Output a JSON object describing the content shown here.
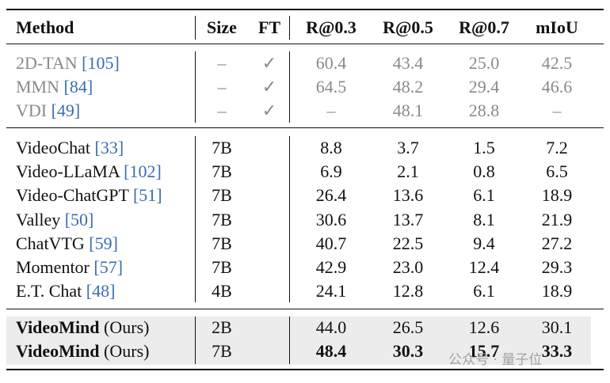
{
  "header": [
    "Method",
    "Size",
    "FT",
    "R@0.3",
    "R@0.5",
    "R@0.7",
    "mIoU"
  ],
  "groups": [
    [
      {
        "method": "2D-TAN",
        "ref": "[105]",
        "size": "–",
        "ft": "✓",
        "scores": [
          "60.4",
          "43.4",
          "25.0",
          "42.5"
        ]
      },
      {
        "method": "MMN",
        "ref": "[84]",
        "size": "–",
        "ft": "✓",
        "scores": [
          "64.5",
          "48.2",
          "29.4",
          "46.6"
        ]
      },
      {
        "method": "VDI",
        "ref": "[49]",
        "size": "–",
        "ft": "✓",
        "scores": [
          "–",
          "48.1",
          "28.8",
          "–"
        ]
      }
    ],
    [
      {
        "method": "VideoChat",
        "ref": "[33]",
        "size": "7B",
        "scores": [
          "8.8",
          "3.7",
          "1.5",
          "7.2"
        ]
      },
      {
        "method": "Video-LLaMA",
        "ref": "[102]",
        "size": "7B",
        "scores": [
          "6.9",
          "2.1",
          "0.8",
          "6.5"
        ]
      },
      {
        "method": "Video-ChatGPT",
        "ref": "[51]",
        "size": "7B",
        "scores": [
          "26.4",
          "13.6",
          "6.1",
          "18.9"
        ]
      },
      {
        "method": "Valley",
        "ref": "[50]",
        "size": "7B",
        "scores": [
          "30.6",
          "13.7",
          "8.1",
          "21.9"
        ]
      },
      {
        "method": "ChatVTG",
        "ref": "[59]",
        "size": "7B",
        "scores": [
          "40.7",
          "22.5",
          "9.4",
          "27.2"
        ]
      },
      {
        "method": "Momentor",
        "ref": "[57]",
        "size": "7B",
        "scores": [
          "42.9",
          "23.0",
          "12.4",
          "29.3"
        ]
      },
      {
        "method": "E.T. Chat",
        "ref": "[48]",
        "size": "4B",
        "scores": [
          "24.1",
          "12.8",
          "6.1",
          "18.9"
        ]
      }
    ],
    [
      {
        "method": "VideoMind",
        "note": "(Ours)",
        "size": "2B",
        "scores": [
          "44.0",
          "26.5",
          "12.6",
          "30.1"
        ]
      },
      {
        "method": "VideoMind",
        "note": "(Ours)",
        "size": "7B",
        "scores": [
          "48.4",
          "30.3",
          "15.7",
          "33.3"
        ],
        "bold": true
      }
    ]
  ],
  "watermark": "公众号 · 量子位"
}
